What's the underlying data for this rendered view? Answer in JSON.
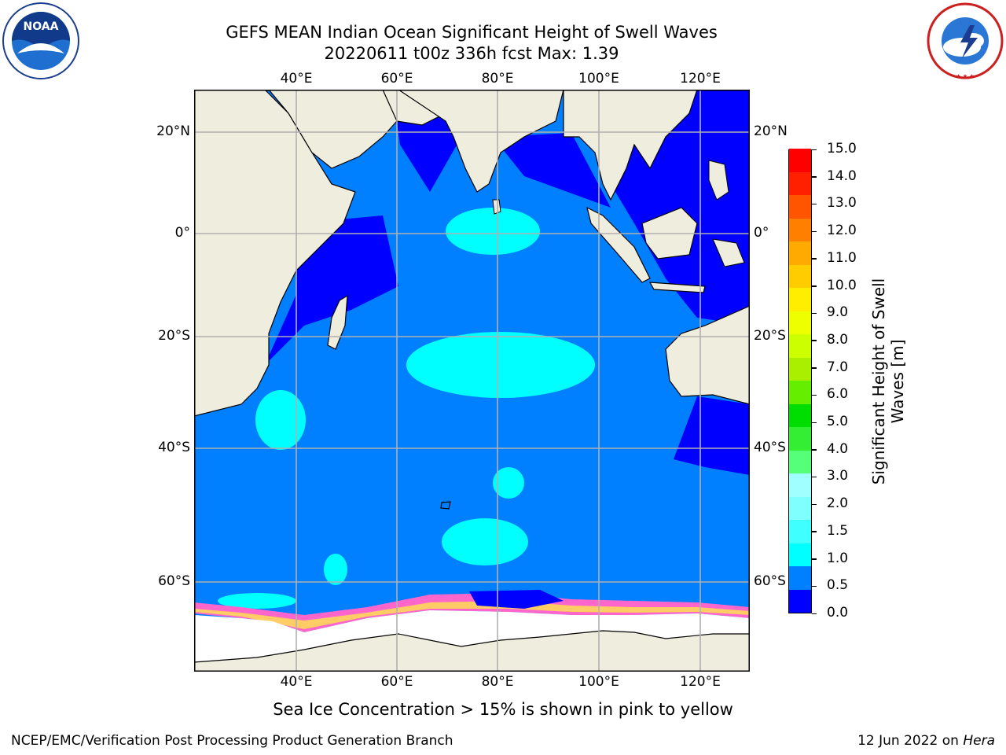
{
  "title": {
    "line1": "GEFS MEAN Indian Ocean Significant Height of Swell Waves",
    "line2": "20220611 t00z 336h fcst   Max: 1.39"
  },
  "axes": {
    "lon_labels": [
      "40°E",
      "60°E",
      "80°E",
      "100°E",
      "120°E"
    ],
    "lat_labels": [
      "20°N",
      "0°",
      "20°S",
      "40°S",
      "60°S"
    ]
  },
  "colorbar": {
    "label_line1": "Significant Height of Swell",
    "label_line2": "Waves [m]",
    "ticks": [
      "0.0",
      "0.5",
      "1.0",
      "1.5",
      "2.0",
      "3.0",
      "4.0",
      "5.0",
      "6.0",
      "7.0",
      "8.0",
      "9.0",
      "10.0",
      "11.0",
      "12.0",
      "13.0",
      "14.0",
      "15.0"
    ],
    "colors": [
      "#0000ff",
      "#0080ff",
      "#00ffff",
      "#40ffff",
      "#80ffff",
      "#a0ffff",
      "#55ff77",
      "#33ee33",
      "#00dd00",
      "#66ee00",
      "#aaee00",
      "#ccff00",
      "#eeff00",
      "#ffee00",
      "#ffcc00",
      "#ffaa00",
      "#ff8000",
      "#ff5500",
      "#ff2000",
      "#ff0000"
    ]
  },
  "note": "Sea Ice Concentration > 15% is shown in pink to yellow",
  "footer": {
    "left": "NCEP/EMC/Verification Post Processing Product Generation Branch",
    "right_date": "12 Jun 2022 on ",
    "right_machine": "Hera"
  },
  "logos": {
    "left": "NOAA",
    "left_ring": "NATIONAL OCEANIC AND ATMOSPHERIC ADMINISTRATION · U.S. DEPARTMENT OF COMMERCE",
    "right_ring": "NATIONAL WEATHER SERVICE"
  }
}
